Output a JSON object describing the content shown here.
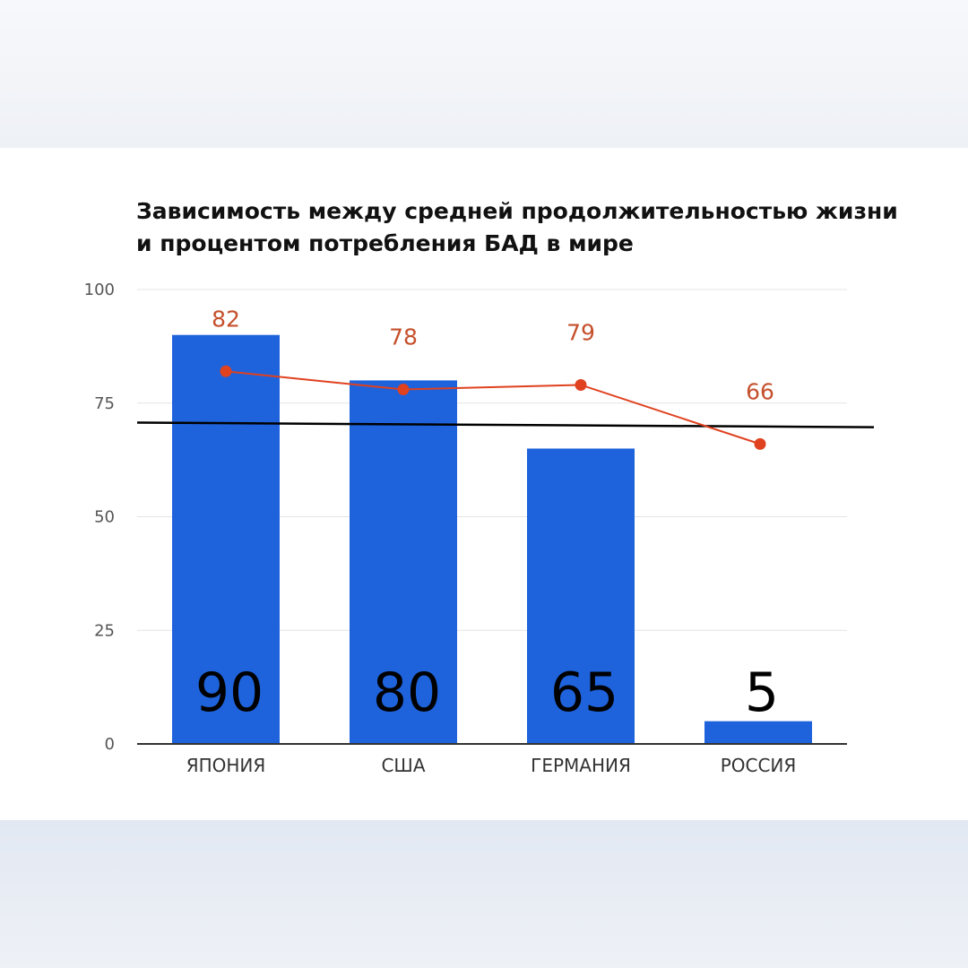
{
  "chart_data": {
    "type": "bar",
    "title_lines": [
      "Зависимость между средней продолжительностью жизни",
      "и процентом потребления БАД в мире"
    ],
    "categories": [
      "ЯПОНИЯ",
      "США",
      "ГЕРМАНИЯ",
      "РОССИЯ"
    ],
    "series": [
      {
        "type": "bar",
        "values": [
          90,
          80,
          65,
          5
        ],
        "color": "#1e63dc"
      },
      {
        "type": "line",
        "values": [
          82,
          78,
          79,
          66
        ],
        "color": "#e0411f"
      }
    ],
    "reference_line": {
      "start": 70.7,
      "end": 69.7,
      "color": "#000000"
    },
    "yticks": [
      0,
      25,
      50,
      75,
      100
    ],
    "ylim": [
      0,
      100
    ],
    "grid": true,
    "legend": "none",
    "xlabel": "",
    "ylabel": ""
  }
}
